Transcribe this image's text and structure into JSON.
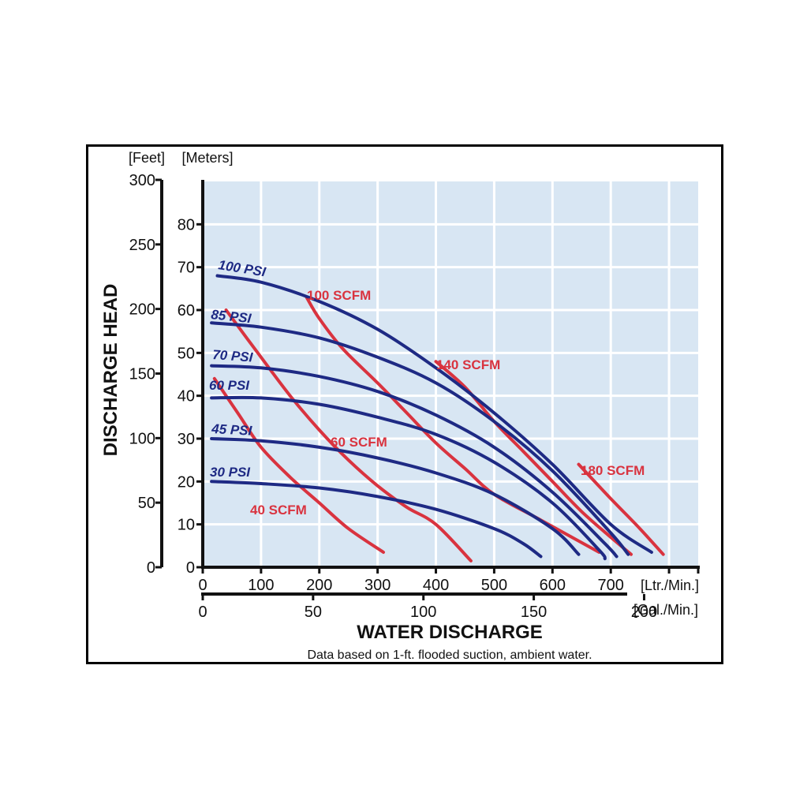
{
  "chart_data": {
    "type": "line",
    "title": "",
    "xlabel": "WATER DISCHARGE",
    "ylabel": "DISCHARGE HEAD",
    "note": "Data based on 1-ft. flooded suction, ambient water.",
    "grid": true,
    "x_lpm": {
      "unit": "[Ltr./Min.]",
      "range": [
        0,
        850
      ],
      "ticks": [
        "0",
        "100",
        "200",
        "300",
        "400",
        "500",
        "600",
        "700"
      ]
    },
    "x_gpm": {
      "unit": "[Gal./Min.]",
      "range": [
        0,
        224.5
      ],
      "ticks": [
        "0",
        "50",
        "100",
        "150",
        "200"
      ]
    },
    "y_meters": {
      "unit": "[Meters]",
      "range": [
        0,
        90
      ],
      "ticks": [
        "0",
        "10",
        "20",
        "30",
        "40",
        "50",
        "60",
        "70",
        "80"
      ]
    },
    "y_feet": {
      "unit": "[Feet]",
      "range": [
        0,
        300
      ],
      "ticks": [
        "0",
        "50",
        "100",
        "150",
        "200",
        "250",
        "300"
      ]
    },
    "pressure_curves": [
      {
        "name": "100 PSI",
        "points": [
          [
            25,
            68
          ],
          [
            100,
            66.5
          ],
          [
            200,
            62
          ],
          [
            300,
            55.5
          ],
          [
            400,
            46.5
          ],
          [
            500,
            36
          ],
          [
            600,
            24
          ],
          [
            700,
            10
          ],
          [
            770,
            3.5
          ]
        ]
      },
      {
        "name": "85 PSI",
        "points": [
          [
            15,
            57
          ],
          [
            100,
            56
          ],
          [
            200,
            53.5
          ],
          [
            300,
            49
          ],
          [
            400,
            43
          ],
          [
            500,
            34
          ],
          [
            600,
            22.5
          ],
          [
            700,
            8
          ],
          [
            730,
            3
          ]
        ]
      },
      {
        "name": "70 PSI",
        "points": [
          [
            15,
            47
          ],
          [
            100,
            46.5
          ],
          [
            200,
            44.5
          ],
          [
            300,
            41
          ],
          [
            400,
            35.5
          ],
          [
            500,
            28
          ],
          [
            600,
            17.5
          ],
          [
            690,
            5.5
          ],
          [
            710,
            2.5
          ]
        ]
      },
      {
        "name": "60 PSI",
        "points": [
          [
            15,
            39.5
          ],
          [
            100,
            39.5
          ],
          [
            200,
            38
          ],
          [
            300,
            35
          ],
          [
            400,
            31
          ],
          [
            500,
            24.5
          ],
          [
            600,
            15
          ],
          [
            680,
            4
          ],
          [
            690,
            2
          ]
        ]
      },
      {
        "name": "45 PSI",
        "points": [
          [
            15,
            30
          ],
          [
            100,
            29.5
          ],
          [
            200,
            28
          ],
          [
            300,
            25.5
          ],
          [
            400,
            22
          ],
          [
            500,
            17
          ],
          [
            600,
            9
          ],
          [
            645,
            3
          ]
        ]
      },
      {
        "name": "30 PSI",
        "points": [
          [
            15,
            20
          ],
          [
            100,
            19.5
          ],
          [
            200,
            18.5
          ],
          [
            300,
            16.5
          ],
          [
            400,
            13.5
          ],
          [
            500,
            9
          ],
          [
            550,
            5.5
          ],
          [
            580,
            2.5
          ]
        ]
      }
    ],
    "air_curves": [
      {
        "name": "40 SCFM",
        "points": [
          [
            20,
            44
          ],
          [
            60,
            36
          ],
          [
            100,
            28
          ],
          [
            150,
            21
          ],
          [
            200,
            15
          ],
          [
            250,
            9
          ],
          [
            310,
            3.5
          ]
        ]
      },
      {
        "name": "60 SCFM",
        "points": [
          [
            40,
            60
          ],
          [
            100,
            49
          ],
          [
            150,
            40
          ],
          [
            200,
            32
          ],
          [
            250,
            25
          ],
          [
            300,
            19
          ],
          [
            350,
            14
          ],
          [
            400,
            10
          ],
          [
            460,
            1.5
          ]
        ]
      },
      {
        "name": "100 SCFM",
        "points": [
          [
            178,
            63
          ],
          [
            200,
            58
          ],
          [
            240,
            51
          ],
          [
            300,
            43
          ],
          [
            350,
            36
          ],
          [
            400,
            29
          ],
          [
            450,
            23
          ],
          [
            500,
            17
          ],
          [
            580,
            11
          ],
          [
            680,
            3.5
          ]
        ]
      },
      {
        "name": "140 SCFM",
        "points": [
          [
            400,
            48
          ],
          [
            450,
            42
          ],
          [
            500,
            34
          ],
          [
            550,
            27
          ],
          [
            600,
            20
          ],
          [
            650,
            13
          ],
          [
            700,
            7
          ],
          [
            735,
            3
          ]
        ]
      },
      {
        "name": "180 SCFM",
        "points": [
          [
            645,
            24
          ],
          [
            700,
            16
          ],
          [
            750,
            9
          ],
          [
            790,
            3
          ]
        ]
      }
    ],
    "pressure_color": "#1e2a84",
    "air_color": "#d9333f",
    "plot_bg": "#d8e6f3"
  }
}
